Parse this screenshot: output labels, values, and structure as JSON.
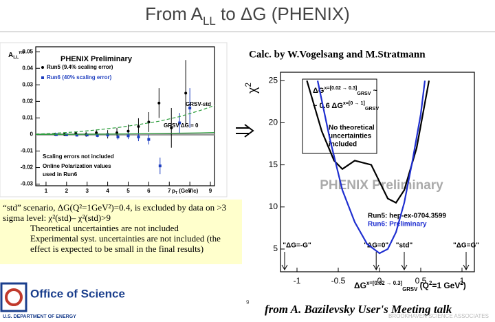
{
  "title": [
    {
      "text": "From A"
    },
    {
      "text": "LL",
      "pos": "sub"
    },
    {
      "text": " to ΔG (PHENIX)"
    }
  ],
  "credit": "Calc. by W.Vogelsang and M.Stratmann",
  "summary": {
    "lead": "“std” scenario, ΔG(Q²=1GeV²)=0.4, is excluded by data on >3 sigma level: χ²(std)– χ²(std)>9",
    "bullets": [
      "Theoretical uncertainties are not included",
      "Experimental syst. uncertainties are not included (the effect is expected to be small in the final results)"
    ]
  },
  "footer": {
    "source": "from A. Bazilevsky User's Meeting talk",
    "page": "9",
    "logo": "Office of Science",
    "logo_sub": "U.S. DEPARTMENT OF ENERGY",
    "partner": "BROOKHAVEN SCIENCE ASSOCIATES"
  },
  "chart_data": [
    {
      "type": "scatter",
      "ylabel": [
        {
          "text": "A"
        },
        {
          "text": "LL",
          "pos": "sub"
        },
        {
          "text": "π0",
          "pos": "sup"
        }
      ],
      "xlabel": [
        {
          "text": "p"
        },
        {
          "text": "T",
          "pos": "sub"
        },
        {
          "text": " (GeV/c)"
        }
      ],
      "xlim": [
        0.5,
        9.2
      ],
      "xticks": [
        1,
        2,
        3,
        4,
        5,
        6,
        7,
        8,
        9
      ],
      "ylim": [
        -0.031,
        0.053
      ],
      "yticks": [
        -0.03,
        -0.02,
        -0.01,
        0,
        0.01,
        0.02,
        0.03,
        0.04,
        0.05
      ],
      "grid": false,
      "annotations": {
        "preliminary": "PHENIX Preliminary",
        "notes": [
          "Scaling errors not included",
          "Online Polarization values",
          "used in Run6"
        ]
      },
      "series": [
        {
          "name": "Run5 (9.4% scaling error)",
          "color": "#000000",
          "style": "points",
          "marker": "circle",
          "x": [
            1.45,
            1.9,
            2.45,
            2.95,
            3.45,
            4.0,
            4.45,
            5.0,
            5.5,
            6.0,
            6.5,
            7.1,
            7.8
          ],
          "values": [
            0.0001,
            0.0001,
            0.0006,
            0.0001,
            0.001,
            0.0001,
            0.001,
            0.002,
            0.0048,
            0.0075,
            0.019,
            0.004,
            0.025
          ],
          "errors": [
            0.001,
            0.001,
            0.0012,
            0.0015,
            0.002,
            0.0025,
            0.003,
            0.004,
            0.005,
            0.006,
            0.009,
            0.012,
            0.02
          ]
        },
        {
          "name": "Run6 (40% scaling error)",
          "color": "#1f3fbf",
          "style": "points",
          "marker": "square",
          "x": [
            1.5,
            2.0,
            2.5,
            3.0,
            3.5,
            4.0,
            4.5,
            5.0,
            5.5,
            6.0,
            6.55,
            7.5,
            8.0
          ],
          "values": [
            -0.0001,
            -0.0002,
            -0.0004,
            -0.0003,
            -0.0006,
            -0.0003,
            -0.0015,
            -0.0008,
            -0.0015,
            -0.003,
            -0.019,
            0.007,
            0.016
          ],
          "errors": [
            0.0005,
            0.0006,
            0.0007,
            0.0008,
            0.001,
            0.0012,
            0.0015,
            0.002,
            0.0025,
            0.003,
            0.005,
            0.006,
            0.012
          ]
        },
        {
          "name": "GRSV-std",
          "color": "#2a9d3a",
          "style": "dashed",
          "x": [
            0.5,
            1.5,
            2.5,
            3.5,
            4.5,
            5.5,
            6.5,
            7.5,
            8.5,
            9.2
          ],
          "values": [
            0.0002,
            0.0008,
            0.0016,
            0.0028,
            0.0042,
            0.006,
            0.008,
            0.0108,
            0.0145,
            0.0175
          ]
        },
        {
          "name": "GRSV ΔG = 0",
          "color": "#2a9d3a",
          "style": "solid",
          "x": [
            0.5,
            2.5,
            4.5,
            6.5,
            8.5,
            9.2
          ],
          "values": [
            0,
            0.0001,
            0.0003,
            0.0006,
            0.001,
            0.0012
          ]
        }
      ]
    },
    {
      "type": "line",
      "ylabel": [
        {
          "text": "χ"
        },
        {
          "text": "2",
          "pos": "sup"
        }
      ],
      "xlabel": [
        {
          "text": "ΔG"
        },
        {
          "text": "x=[0.02 → 0.3]",
          "pos": "sup"
        },
        {
          "text": "GRSV",
          "pos": "sub"
        },
        {
          "text": " (Q"
        },
        {
          "text": "2",
          "pos": "sup"
        },
        {
          "text": "=1 GeV"
        },
        {
          "text": "2",
          "pos": "sup"
        },
        {
          "text": ")"
        }
      ],
      "xlim": [
        -1.2,
        1.15
      ],
      "xticks": [
        -1,
        -0.5,
        0,
        0.5,
        1
      ],
      "ylim": [
        2.3,
        26
      ],
      "yticks": [
        5,
        10,
        15,
        20,
        25
      ],
      "grid": false,
      "annotations": {
        "preliminary": "PHENIX Preliminary",
        "notes": [
          "No theoretical",
          "uncertainties",
          "included"
        ],
        "box": [
          [
            {
              "text": "ΔG"
            },
            {
              "text": "x=[0.02 → 0.3]",
              "pos": "sup"
            },
            {
              "text": "GRSV",
              "pos": "sub"
            },
            {
              "text": " ~"
            }
          ],
          [
            {
              "text": "~ 0.6 ΔG"
            },
            {
              "text": "x=[0 → 1]",
              "pos": "sup"
            },
            {
              "text": "GRSV",
              "pos": "sub"
            }
          ]
        ]
      },
      "scenarios": [
        {
          "label": "\"ΔG=-G\"",
          "x": -1.15
        },
        {
          "label": "\"ΔG=0\"",
          "x": -0.04
        },
        {
          "label": "\"std\"",
          "x": 0.3
        },
        {
          "label": "\"ΔG=G\"",
          "x": 1.05
        }
      ],
      "series": [
        {
          "name": "Run5: hep-ex-0704.3599",
          "color": "#000000",
          "x": [
            -0.88,
            -0.7,
            -0.55,
            -0.45,
            -0.3,
            -0.1,
            0.0,
            0.1,
            0.2,
            0.3,
            0.45,
            0.6
          ],
          "values": [
            25,
            19,
            15.5,
            14.5,
            15.5,
            15,
            13,
            11,
            10.5,
            12,
            17,
            25
          ]
        },
        {
          "name": "Run6: Preliminary",
          "color": "#1f2fd0",
          "x": [
            -0.75,
            -0.6,
            -0.45,
            -0.3,
            -0.15,
            0.0,
            0.1,
            0.2,
            0.3,
            0.4,
            0.5,
            0.55
          ],
          "values": [
            25,
            18,
            12,
            8.2,
            5.6,
            4.5,
            5,
            7,
            10.5,
            15.5,
            21,
            25
          ]
        }
      ]
    }
  ]
}
